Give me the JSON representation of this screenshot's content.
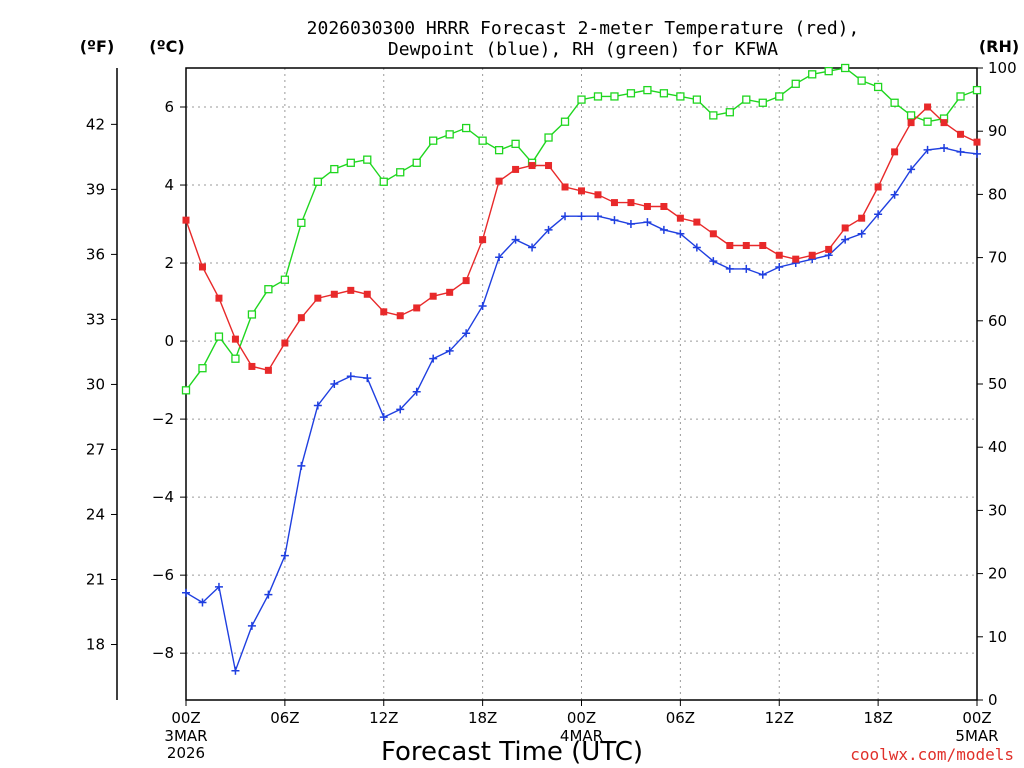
{
  "title_lines": [
    "2026030300 HRRR Forecast 2-meter Temperature (red),",
    "Dewpoint (blue), RH (green) for KFWA"
  ],
  "unit_labels": {
    "fahrenheit": "(ºF)",
    "celsius": "(ºC)",
    "rh": "(RH)"
  },
  "credit": "coolwx.com/models",
  "colors": {
    "temperature": "#e8292a",
    "dewpoint": "#1f3fe0",
    "rh": "#1fd61f",
    "credit": "#e0302a"
  },
  "chart_data": {
    "type": "line",
    "title": "2026030300 HRRR Forecast 2-meter Temperature (red), Dewpoint (blue), RH (green) for KFWA",
    "xlabel": "Forecast Time (UTC)",
    "x_hours": [
      0,
      1,
      2,
      3,
      4,
      5,
      6,
      7,
      8,
      9,
      10,
      11,
      12,
      13,
      14,
      15,
      16,
      17,
      18,
      19,
      20,
      21,
      22,
      23,
      24,
      25,
      26,
      27,
      28,
      29,
      30,
      31,
      32,
      33,
      34,
      35,
      36,
      37,
      38,
      39,
      40,
      41,
      42,
      43,
      44,
      45,
      46,
      47,
      48
    ],
    "x_ticks": [
      {
        "hour": 0,
        "label": "00Z",
        "sub": [
          "3MAR",
          "2026"
        ]
      },
      {
        "hour": 6,
        "label": "06Z",
        "sub": []
      },
      {
        "hour": 12,
        "label": "12Z",
        "sub": []
      },
      {
        "hour": 18,
        "label": "18Z",
        "sub": []
      },
      {
        "hour": 24,
        "label": "00Z",
        "sub": [
          "4MAR"
        ]
      },
      {
        "hour": 30,
        "label": "06Z",
        "sub": []
      },
      {
        "hour": 36,
        "label": "12Z",
        "sub": []
      },
      {
        "hour": 42,
        "label": "18Z",
        "sub": []
      },
      {
        "hour": 48,
        "label": "00Z",
        "sub": [
          "5MAR"
        ]
      }
    ],
    "celsius_axis": {
      "range": [
        -9.2,
        7.0
      ],
      "ticks": [
        -8,
        -6,
        -4,
        -2,
        0,
        2,
        4,
        6
      ]
    },
    "fahrenheit_axis": {
      "ticks": [
        18,
        21,
        24,
        27,
        30,
        33,
        36,
        39,
        42
      ]
    },
    "rh_axis": {
      "range": [
        0,
        100
      ],
      "ticks": [
        0,
        10,
        20,
        30,
        40,
        50,
        60,
        70,
        80,
        90,
        100
      ]
    },
    "grid": true,
    "series": [
      {
        "name": "Temperature",
        "axis": "celsius",
        "marker": "filled-square",
        "values": [
          3.1,
          1.9,
          1.1,
          0.05,
          -0.65,
          -0.75,
          -0.05,
          0.6,
          1.1,
          1.2,
          1.3,
          1.2,
          0.75,
          0.65,
          0.85,
          1.15,
          1.25,
          1.55,
          2.6,
          4.1,
          4.4,
          4.5,
          4.5,
          3.95,
          3.85,
          3.75,
          3.55,
          3.55,
          3.45,
          3.45,
          3.15,
          3.05,
          2.75,
          2.45,
          2.45,
          2.45,
          2.2,
          2.1,
          2.2,
          2.35,
          2.9,
          3.15,
          3.95,
          4.85,
          5.6,
          6.0,
          5.6,
          5.3,
          5.1
        ]
      },
      {
        "name": "Dewpoint",
        "axis": "celsius",
        "marker": "plus",
        "values": [
          -6.45,
          -6.7,
          -6.3,
          -8.45,
          -7.3,
          -6.5,
          -5.5,
          -3.2,
          -1.65,
          -1.1,
          -0.9,
          -0.95,
          -1.95,
          -1.75,
          -1.3,
          -0.45,
          -0.25,
          0.2,
          0.9,
          2.15,
          2.6,
          2.4,
          2.85,
          3.2,
          3.2,
          3.2,
          3.1,
          3.0,
          3.05,
          2.85,
          2.75,
          2.4,
          2.05,
          1.85,
          1.85,
          1.7,
          1.9,
          2.0,
          2.1,
          2.2,
          2.6,
          2.75,
          3.25,
          3.75,
          4.4,
          4.9,
          4.95,
          4.85,
          4.8
        ]
      },
      {
        "name": "RH",
        "axis": "rh",
        "marker": "open-square",
        "values": [
          49,
          52.5,
          57.5,
          54,
          61,
          65,
          66.5,
          75.5,
          82,
          84,
          85,
          85.5,
          82,
          83.5,
          85,
          88.5,
          89.5,
          90.5,
          88.5,
          87,
          88,
          85,
          89,
          91.5,
          95,
          95.5,
          95.5,
          96,
          96.5,
          96,
          95.5,
          95,
          92.5,
          93,
          95,
          94.5,
          95.5,
          97.5,
          99,
          99.5,
          100,
          98,
          97,
          94.5,
          92.5,
          91.5,
          92,
          95.5,
          96.5
        ]
      }
    ]
  }
}
